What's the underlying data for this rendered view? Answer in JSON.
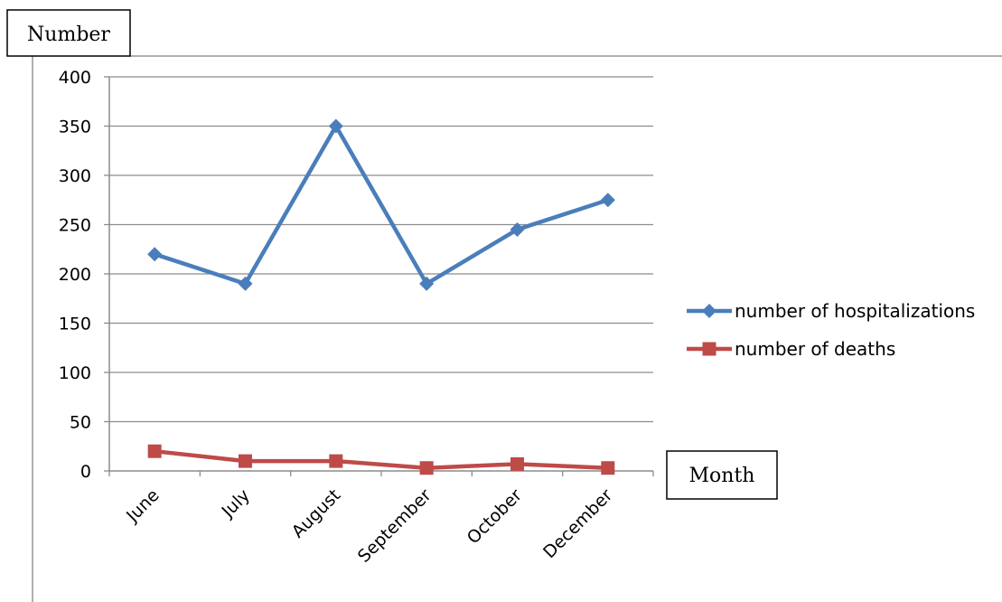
{
  "chart_data": {
    "type": "line",
    "title": "",
    "ylabel": "Number",
    "xlabel": "Month",
    "categories": [
      "June",
      "July",
      "August",
      "September",
      "October",
      "December"
    ],
    "ylim": [
      0,
      400
    ],
    "yticks": [
      0,
      50,
      100,
      150,
      200,
      250,
      300,
      350,
      400
    ],
    "grid": true,
    "legend_position": "right",
    "series": [
      {
        "name": "number of hospitalizations",
        "values": [
          220,
          190,
          350,
          190,
          245,
          275
        ],
        "color": "#4A7EBB",
        "marker": "diamond"
      },
      {
        "name": "number of deaths",
        "values": [
          20,
          10,
          10,
          3,
          7,
          3
        ],
        "color": "#BE4B48",
        "marker": "square"
      }
    ]
  }
}
